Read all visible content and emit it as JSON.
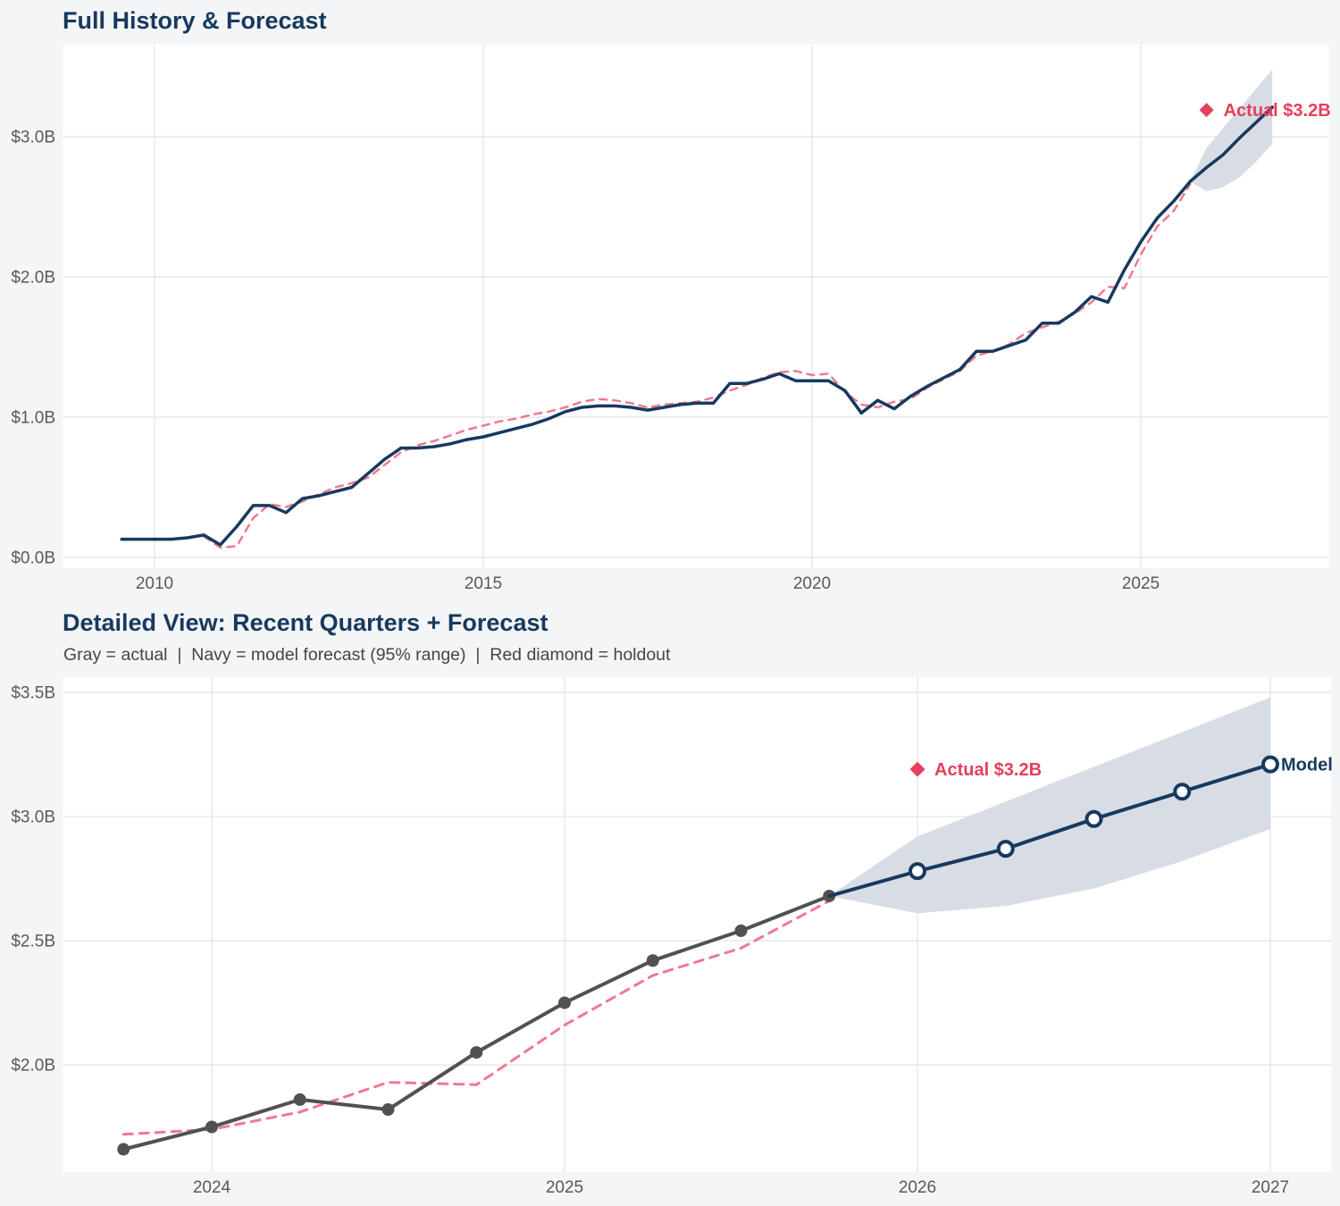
{
  "colors": {
    "background": "#f4f5f7",
    "plot_bg": "#ffffff",
    "gridline": "#e3e4e8",
    "navy": "#17395e",
    "gray_line": "#515151",
    "red": "#e63e5c",
    "red_dashed": "#ef7a8e",
    "band": "#d8dce4",
    "tick": "#58595c",
    "title": "#17395e",
    "subtitle": "#454545"
  },
  "chart_data": [
    {
      "id": "full_history",
      "type": "line",
      "title": "Full History & Forecast",
      "x_ticks": [
        2010,
        2015,
        2020,
        2025
      ],
      "y_ticks": [
        {
          "value": 0,
          "label": "$0.0B"
        },
        {
          "value": 1,
          "label": "$1.0B"
        },
        {
          "value": 2,
          "label": "$2.0B"
        },
        {
          "value": 3,
          "label": "$3.0B"
        }
      ],
      "x_range": [
        2008.6,
        2027.9
      ],
      "y_range": [
        -0.07,
        3.69
      ],
      "grid": true,
      "series": [
        {
          "name": "actual",
          "style": "navy-solid",
          "x_start": 2009.5,
          "x_step": 0.25,
          "values": [
            0.13,
            0.13,
            0.13,
            0.13,
            0.14,
            0.16,
            0.09,
            0.22,
            0.37,
            0.37,
            0.32,
            0.42,
            0.44,
            0.47,
            0.5,
            0.6,
            0.7,
            0.78,
            0.78,
            0.79,
            0.81,
            0.84,
            0.86,
            0.89,
            0.92,
            0.95,
            0.99,
            1.04,
            1.07,
            1.08,
            1.08,
            1.07,
            1.05,
            1.07,
            1.09,
            1.1,
            1.1,
            1.24,
            1.24,
            1.27,
            1.31,
            1.26,
            1.26,
            1.26,
            1.19,
            1.03,
            1.12,
            1.06,
            1.15,
            1.22,
            1.28,
            1.34,
            1.47,
            1.47,
            1.51,
            1.55,
            1.67,
            1.67,
            1.75,
            1.86,
            1.82,
            2.05,
            2.25,
            2.42,
            2.54,
            2.68
          ]
        },
        {
          "name": "model_fit",
          "style": "red-dashed",
          "x_start": 2010.75,
          "x_step": 0.25,
          "values": [
            0.15,
            0.07,
            0.08,
            0.28,
            0.38,
            0.36,
            0.4,
            0.45,
            0.5,
            0.53,
            0.57,
            0.66,
            0.75,
            0.8,
            0.83,
            0.87,
            0.91,
            0.94,
            0.97,
            0.99,
            1.02,
            1.04,
            1.07,
            1.11,
            1.13,
            1.12,
            1.1,
            1.07,
            1.09,
            1.1,
            1.11,
            1.14,
            1.19,
            1.23,
            1.28,
            1.32,
            1.33,
            1.3,
            1.31,
            1.18,
            1.09,
            1.07,
            1.11,
            1.13,
            1.21,
            1.27,
            1.33,
            1.44,
            1.47,
            1.52,
            1.6,
            1.64,
            1.68,
            1.74,
            1.82,
            1.93,
            1.92,
            2.16,
            2.36,
            2.47,
            2.66
          ]
        },
        {
          "name": "model_forecast",
          "style": "navy-solid",
          "x_start": 2025.75,
          "x_step": 0.25,
          "values": [
            2.68,
            2.78,
            2.87,
            2.99,
            3.1,
            3.21
          ]
        }
      ],
      "band": {
        "x_start": 2025.75,
        "x_step": 0.25,
        "upper": [
          2.68,
          2.92,
          3.06,
          3.2,
          3.34,
          3.48
        ],
        "lower": [
          2.68,
          2.61,
          2.64,
          2.71,
          2.82,
          2.95
        ]
      },
      "annotation": {
        "label": "Actual $3.2B",
        "x": 2026.0,
        "y": 3.19
      }
    },
    {
      "id": "detailed_view",
      "type": "line",
      "title": "Detailed View: Recent Quarters + Forecast",
      "subtitle": "Gray = actual  |  Navy = model forecast (95% range)  |  Red diamond = holdout",
      "x_ticks": [
        2024,
        2025,
        2026,
        2027
      ],
      "y_ticks": [
        {
          "value": 2.0,
          "label": "$2.0B"
        },
        {
          "value": 2.5,
          "label": "$2.5B"
        },
        {
          "value": 3.0,
          "label": "$3.0B"
        },
        {
          "value": 3.5,
          "label": "$3.5B"
        }
      ],
      "x_range": [
        2023.58,
        2027.17
      ],
      "y_range": [
        1.57,
        3.56
      ],
      "grid": true,
      "series": [
        {
          "name": "actual",
          "style": "gray-solid-dots",
          "x_start": 2023.75,
          "x_step": 0.25,
          "values": [
            1.66,
            1.75,
            1.86,
            1.82,
            2.05,
            2.25,
            2.42,
            2.54,
            2.68
          ]
        },
        {
          "name": "model_fit",
          "style": "red-dashed",
          "x_start": 2023.75,
          "x_step": 0.25,
          "values": [
            1.72,
            1.74,
            1.81,
            1.93,
            1.92,
            2.16,
            2.36,
            2.47,
            2.66
          ]
        },
        {
          "name": "model_forecast",
          "style": "navy-solid-circles",
          "x_start": 2025.75,
          "x_step": 0.25,
          "values": [
            2.68,
            2.78,
            2.87,
            2.99,
            3.1,
            3.21
          ],
          "end_label": "Model"
        }
      ],
      "band": {
        "x_start": 2025.75,
        "x_step": 0.25,
        "upper": [
          2.68,
          2.92,
          3.06,
          3.2,
          3.34,
          3.48
        ],
        "lower": [
          2.68,
          2.61,
          2.64,
          2.71,
          2.82,
          2.95
        ]
      },
      "annotation": {
        "label": "Actual $3.2B",
        "x": 2026.0,
        "y": 3.19
      }
    }
  ]
}
